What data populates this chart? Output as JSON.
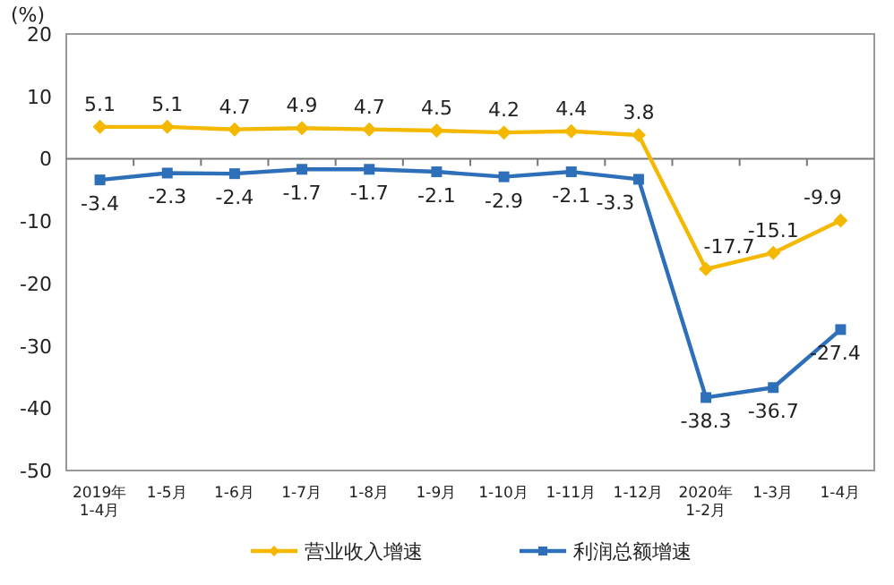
{
  "chart_data": {
    "type": "line",
    "ylabel": "(%)",
    "categories": [
      "2019年\n1-4月",
      "1-5月",
      "1-6月",
      "1-7月",
      "1-8月",
      "1-9月",
      "1-10月",
      "1-11月",
      "1-12月",
      "2020年\n1-2月",
      "1-3月",
      "1-4月"
    ],
    "series": [
      {
        "name": "营业收入增速",
        "color": "#f5b800",
        "marker": "diamond",
        "values": [
          5.1,
          5.1,
          4.7,
          4.9,
          4.7,
          4.5,
          4.2,
          4.4,
          3.8,
          -17.7,
          -15.1,
          -9.9
        ]
      },
      {
        "name": "利润总额增速",
        "color": "#2e6fba",
        "marker": "square",
        "values": [
          -3.4,
          -2.3,
          -2.4,
          -1.7,
          -1.7,
          -2.1,
          -2.9,
          -2.1,
          -3.3,
          -38.3,
          -36.7,
          -27.4
        ]
      }
    ],
    "ylim": [
      -50,
      20
    ],
    "yticks": [
      -50,
      -40,
      -30,
      -20,
      -10,
      0,
      10,
      20
    ],
    "data_labels": true,
    "legend": "bottom",
    "line_style": "solid"
  }
}
